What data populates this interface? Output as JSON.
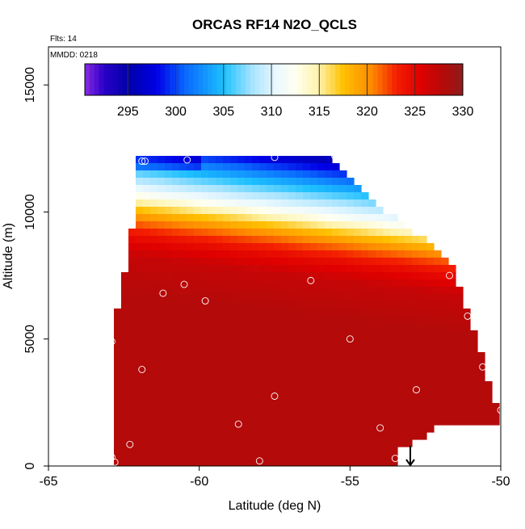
{
  "chart_data": {
    "type": "heatmap",
    "title": "ORCAS RF14 N2O_QCLS",
    "annotations": [
      "Flts: 14",
      "MMDD: 0218"
    ],
    "xlabel": "Latitude (deg N)",
    "ylabel": "Altitude (m)",
    "xlim": [
      -65,
      -50
    ],
    "ylim": [
      0,
      16500
    ],
    "x_ticks": [
      -65,
      -60,
      -55,
      -50
    ],
    "x_tick_labels": [
      "-65",
      "-60",
      "-55",
      "-50"
    ],
    "y_ticks": [
      0,
      5000,
      10000,
      15000
    ],
    "y_tick_labels": [
      "0",
      "5000",
      "10000",
      "15000"
    ],
    "colorbar": {
      "range": [
        290.5,
        330
      ],
      "ticks": [
        295,
        300,
        305,
        310,
        315,
        320,
        325,
        330
      ],
      "tick_labels": [
        "295",
        "300",
        "305",
        "310",
        "315",
        "320",
        "325",
        "330"
      ],
      "palette": [
        {
          "v": 290.5,
          "c": "#8a2be2"
        },
        {
          "v": 292.5,
          "c": "#2a00c8"
        },
        {
          "v": 295.0,
          "c": "#0000a8"
        },
        {
          "v": 298.0,
          "c": "#0000e6"
        },
        {
          "v": 301.0,
          "c": "#0a68ff"
        },
        {
          "v": 305.0,
          "c": "#1cc0ff"
        },
        {
          "v": 308.0,
          "c": "#a8e4ff"
        },
        {
          "v": 310.5,
          "c": "#eaf8ff"
        },
        {
          "v": 312.5,
          "c": "#fffff0"
        },
        {
          "v": 315.0,
          "c": "#fff2a8"
        },
        {
          "v": 317.5,
          "c": "#ffc000"
        },
        {
          "v": 320.5,
          "c": "#ff8a00"
        },
        {
          "v": 323.0,
          "c": "#f42000"
        },
        {
          "v": 325.5,
          "c": "#e00000"
        },
        {
          "v": 328.0,
          "c": "#b40a0a"
        },
        {
          "v": 330.0,
          "c": "#8e1c1c"
        }
      ]
    },
    "field_profile": [
      {
        "alt": 0,
        "value": 328.0
      },
      {
        "alt": 6000,
        "value": 328.0
      },
      {
        "alt": 7500,
        "value": 327.0
      },
      {
        "alt": 8300,
        "value": 324.5
      },
      {
        "alt": 9000,
        "value": 320.5
      },
      {
        "alt": 9500,
        "value": 316.5
      },
      {
        "alt": 10000,
        "value": 312.0
      },
      {
        "alt": 10600,
        "value": 308.0
      },
      {
        "alt": 11300,
        "value": 303.0
      },
      {
        "alt": 11800,
        "value": 299.0
      },
      {
        "alt": 12200,
        "value": 296.0
      }
    ],
    "coverage": [
      {
        "lat": -62.9,
        "top": 5000
      },
      {
        "lat": -62.6,
        "top": 6700
      },
      {
        "lat": -62.3,
        "top": 8500
      },
      {
        "lat": -62.0,
        "top": 12200
      },
      {
        "lat": -55.6,
        "top": 12200
      },
      {
        "lat": -54.0,
        "top": 10200
      },
      {
        "lat": -52.0,
        "top": 8400
      },
      {
        "lat": -51.5,
        "top": 7600
      },
      {
        "lat": -51.0,
        "top": 5700
      },
      {
        "lat": -50.6,
        "top": 4300
      },
      {
        "lat": -50.2,
        "top": 2400
      },
      {
        "lat": -50.0,
        "top": 2100
      },
      {
        "lat": -50.0,
        "top": 1600
      },
      {
        "lat": -52.0,
        "top": 1600
      },
      {
        "lat": -53.5,
        "top": 500
      },
      {
        "lat": -53.5,
        "top": 0
      }
    ],
    "sample_points": [
      {
        "lat": -62.9,
        "alt": 4900
      },
      {
        "lat": -62.9,
        "alt": 350
      },
      {
        "lat": -62.8,
        "alt": 150
      },
      {
        "lat": -62.3,
        "alt": 850
      },
      {
        "lat": -61.9,
        "alt": 12000
      },
      {
        "lat": -61.8,
        "alt": 12000
      },
      {
        "lat": -61.9,
        "alt": 3800
      },
      {
        "lat": -61.2,
        "alt": 6800
      },
      {
        "lat": -60.5,
        "alt": 7150
      },
      {
        "lat": -60.4,
        "alt": 12050
      },
      {
        "lat": -59.8,
        "alt": 6500
      },
      {
        "lat": -58.7,
        "alt": 1650
      },
      {
        "lat": -58.0,
        "alt": 200
      },
      {
        "lat": -57.5,
        "alt": 12150
      },
      {
        "lat": -57.5,
        "alt": 2750
      },
      {
        "lat": -56.3,
        "alt": 7300
      },
      {
        "lat": -55.5,
        "alt": 12200
      },
      {
        "lat": -55.0,
        "alt": 5000
      },
      {
        "lat": -54.0,
        "alt": 1500
      },
      {
        "lat": -53.5,
        "alt": 300
      },
      {
        "lat": -52.8,
        "alt": 3000
      },
      {
        "lat": -51.7,
        "alt": 7500
      },
      {
        "lat": -51.1,
        "alt": 5900
      },
      {
        "lat": -50.6,
        "alt": 3900
      },
      {
        "lat": -50.0,
        "alt": 2200
      }
    ],
    "marker_arrow": {
      "lat": -53.0,
      "alt_top": 800,
      "alt_bottom": 0
    }
  }
}
